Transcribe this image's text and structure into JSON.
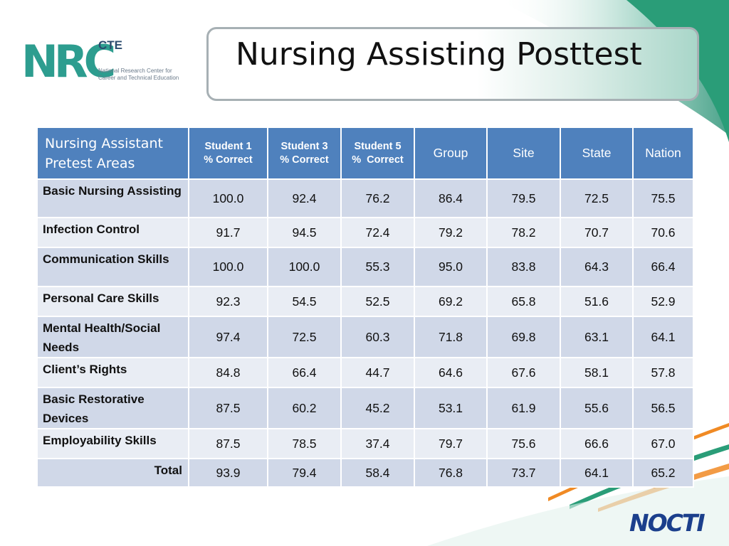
{
  "logo": {
    "letters": "NRC",
    "cte": "CTE",
    "subtitle_line1": "National Research Center for",
    "subtitle_line2": "Career and Technical Education"
  },
  "title": "Nursing Assisting Posttest",
  "table": {
    "header": {
      "area_line1": "Nursing Assistant",
      "area_line2": "Pretest Areas",
      "student1_line1": "Student 1",
      "student1_line2": "% Correct",
      "student3_line1": "Student 3",
      "student3_line2": "% Correct",
      "student5_line1": "Student 5",
      "student5_line2": "%  Correct",
      "group": "Group",
      "site": "Site",
      "state": "State",
      "nation": "Nation"
    },
    "rows": [
      {
        "area": "Basic Nursing Assisting",
        "s1": "100.0",
        "s3": "92.4",
        "s5": "76.2",
        "group": "86.4",
        "site": "79.5",
        "state": "72.5",
        "nation": "75.5"
      },
      {
        "area": "Infection Control",
        "s1": "91.7",
        "s3": "94.5",
        "s5": "72.4",
        "group": "79.2",
        "site": "78.2",
        "state": "70.7",
        "nation": "70.6"
      },
      {
        "area": "Communication Skills",
        "s1": "100.0",
        "s3": "100.0",
        "s5": "55.3",
        "group": "95.0",
        "site": "83.8",
        "state": "64.3",
        "nation": "66.4"
      },
      {
        "area": "Personal Care Skills",
        "s1": "92.3",
        "s3": "54.5",
        "s5": "52.5",
        "group": "69.2",
        "site": "65.8",
        "state": "51.6",
        "nation": "52.9"
      },
      {
        "area": "Mental Health/Social Needs",
        "s1": "97.4",
        "s3": "72.5",
        "s5": "60.3",
        "group": "71.8",
        "site": "69.8",
        "state": "63.1",
        "nation": "64.1"
      },
      {
        "area": "Client’s Rights",
        "s1": "84.8",
        "s3": "66.4",
        "s5": "44.7",
        "group": "64.6",
        "site": "67.6",
        "state": "58.1",
        "nation": "57.8"
      },
      {
        "area": "Basic Restorative Devices",
        "s1": "87.5",
        "s3": "60.2",
        "s5": "45.2",
        "group": "53.1",
        "site": "61.9",
        "state": "55.6",
        "nation": "56.5"
      },
      {
        "area": "Employability Skills",
        "s1": "87.5",
        "s3": "78.5",
        "s5": "37.4",
        "group": "79.7",
        "site": "75.6",
        "state": "66.6",
        "nation": "67.0"
      },
      {
        "area": "Total",
        "s1": "93.9",
        "s3": "79.4",
        "s5": "58.4",
        "group": "76.8",
        "site": "73.7",
        "state": "64.1",
        "nation": "65.2"
      }
    ]
  },
  "footer_logo": "NOCTI",
  "colors": {
    "header_bg": "#4f81bd",
    "row_dark": "#d0d8e8",
    "row_light": "#e9edf4",
    "teal": "#2d9d8f",
    "orange": "#f08a24"
  }
}
